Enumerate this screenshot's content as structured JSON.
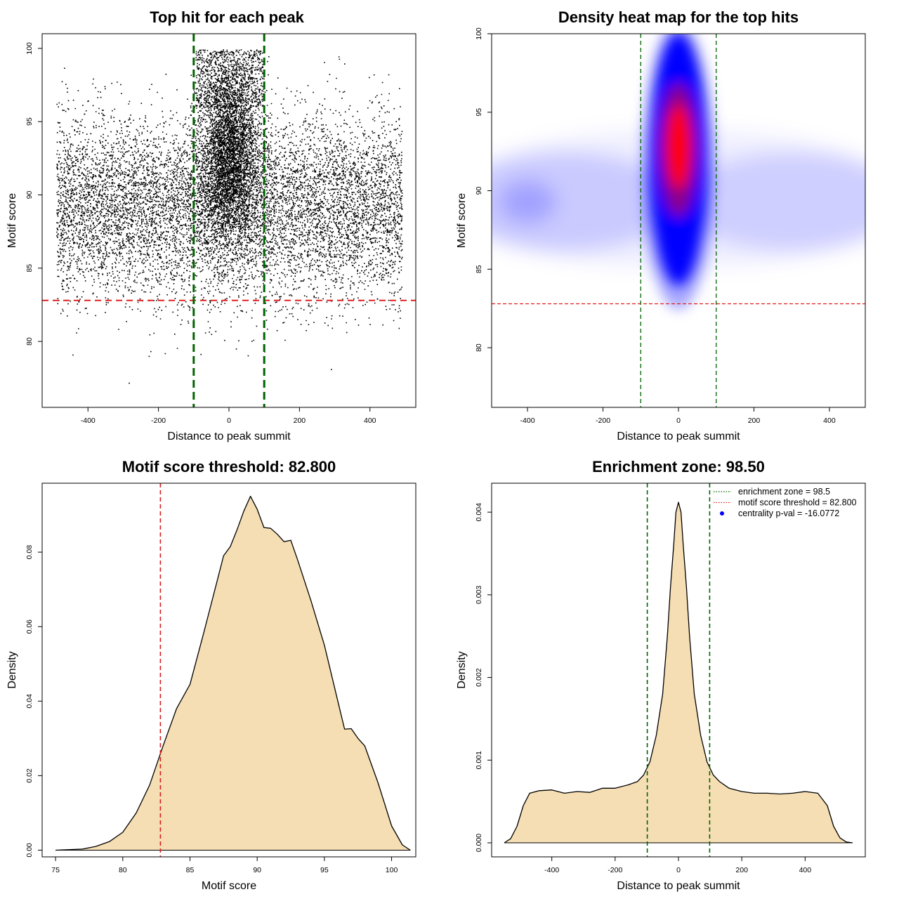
{
  "chart_data": [
    {
      "type": "scatter",
      "title": "Top hit for each peak",
      "xlabel": "Distance to peak summit",
      "ylabel": "Motif score",
      "xlim": [
        -530,
        530
      ],
      "ylim": [
        75.5,
        101
      ],
      "xticks": [
        -400,
        -200,
        0,
        200,
        400
      ],
      "yticks": [
        80,
        85,
        90,
        95,
        100
      ],
      "threshold_y": 82.8,
      "zone_x": [
        -100,
        100
      ],
      "threshold_color": "#e02020",
      "zone_color": "#006400",
      "point_color": "#000000",
      "x_range": [
        -490,
        490
      ],
      "x_tick_labels": [
        "-400",
        "-200",
        "0",
        "200",
        "400"
      ],
      "y_tick_labels": [
        "80",
        "85",
        "90",
        "95",
        "100"
      ]
    },
    {
      "type": "heatmap",
      "title": "Density heat map for the top hits",
      "xlabel": "Distance to peak summit",
      "ylabel": "Motif score",
      "xlim": [
        -495,
        495
      ],
      "ylim": [
        76.2,
        100
      ],
      "xticks": [
        -400,
        -200,
        0,
        200,
        400
      ],
      "yticks": [
        80,
        85,
        90,
        95,
        100
      ],
      "threshold_y": 82.8,
      "zone_x": [
        -100,
        100
      ],
      "colors": [
        "#ffffff",
        "#0000ff",
        "#ff0000"
      ],
      "threshold_color": "#e02020",
      "zone_color": "#006400",
      "x_tick_labels": [
        "-400",
        "-200",
        "0",
        "200",
        "400"
      ],
      "y_tick_labels": [
        "80",
        "85",
        "90",
        "95",
        "100"
      ]
    },
    {
      "type": "area",
      "title": "Motif score threshold: 82.800",
      "xlabel": "Motif score",
      "ylabel": "Density",
      "xlim": [
        74,
        101.8
      ],
      "ylim": [
        -0.0018,
        0.0985
      ],
      "xticks": [
        75,
        80,
        85,
        90,
        95,
        100
      ],
      "yticks": [
        0,
        0.02,
        0.04,
        0.06,
        0.08
      ],
      "threshold_x": 82.8,
      "fill_color": "#f5deb3",
      "threshold_color": "#d42020",
      "x": [
        75,
        77,
        78,
        79,
        80,
        81,
        82,
        83,
        84,
        85,
        86,
        87,
        87.5,
        88,
        88.5,
        89,
        89.5,
        90,
        90.5,
        91,
        91.5,
        92,
        92.5,
        93,
        94,
        95,
        96,
        96.5,
        97,
        97.5,
        98,
        99,
        100,
        100.8,
        101.4
      ],
      "y": [
        0,
        0.0003,
        0.001,
        0.0023,
        0.0048,
        0.01,
        0.0175,
        0.028,
        0.038,
        0.0445,
        0.058,
        0.072,
        0.079,
        0.0815,
        0.086,
        0.091,
        0.095,
        0.0915,
        0.0866,
        0.0864,
        0.0848,
        0.0828,
        0.0832,
        0.078,
        0.067,
        0.055,
        0.04,
        0.0325,
        0.0326,
        0.03,
        0.028,
        0.018,
        0.0065,
        0.0014,
        0
      ],
      "x_tick_labels": [
        "75",
        "80",
        "85",
        "90",
        "95",
        "100"
      ],
      "y_tick_labels": [
        "0.00",
        "0.02",
        "0.04",
        "0.06",
        "0.08"
      ]
    },
    {
      "type": "area",
      "title": "Enrichment zone: 98.50",
      "xlabel": "Distance to peak summit",
      "ylabel": "Density",
      "xlim": [
        -590,
        590
      ],
      "ylim": [
        -0.00017,
        0.00435
      ],
      "xticks": [
        -400,
        -200,
        0,
        200,
        400
      ],
      "yticks": [
        0,
        0.001,
        0.002,
        0.003,
        0.004
      ],
      "zone_x": [
        -98.5,
        98.5
      ],
      "fill_color": "#f5deb3",
      "zone_color": "#006400",
      "threshold_color": "#d42020",
      "x": [
        -550,
        -530,
        -510,
        -490,
        -470,
        -440,
        -400,
        -360,
        -320,
        -280,
        -240,
        -200,
        -160,
        -130,
        -110,
        -90,
        -70,
        -50,
        -35,
        -25,
        -15,
        -8,
        0,
        8,
        15,
        25,
        35,
        50,
        70,
        90,
        110,
        130,
        160,
        200,
        240,
        280,
        320,
        360,
        400,
        440,
        470,
        490,
        510,
        530,
        550
      ],
      "y": [
        0,
        5e-05,
        0.0002,
        0.00045,
        0.0006,
        0.00063,
        0.00064,
        0.0006,
        0.00062,
        0.00061,
        0.00066,
        0.00066,
        0.0007,
        0.00074,
        0.00082,
        0.00098,
        0.0013,
        0.0018,
        0.0025,
        0.0031,
        0.0036,
        0.004,
        0.00412,
        0.004,
        0.0036,
        0.0031,
        0.0025,
        0.0018,
        0.0013,
        0.00098,
        0.00082,
        0.00074,
        0.00066,
        0.00062,
        0.0006,
        0.0006,
        0.00059,
        0.0006,
        0.00062,
        0.0006,
        0.00045,
        0.0002,
        6e-05,
        1e-05,
        0
      ],
      "legend": [
        {
          "label": "enrichment zone = 98.5",
          "color": "#006400",
          "symbol": "dotted-line"
        },
        {
          "label": "motif score threshold = 82.800",
          "color": "#d42020",
          "symbol": "dotted-line"
        },
        {
          "label": "centrality p-val = -16.0772",
          "color": "#0000ff",
          "symbol": "point"
        }
      ],
      "legend_position": "top-right",
      "x_tick_labels": [
        "-400",
        "-200",
        "0",
        "200",
        "400"
      ],
      "y_tick_labels": [
        "0.000",
        "0.001",
        "0.002",
        "0.003",
        "0.004"
      ]
    }
  ]
}
